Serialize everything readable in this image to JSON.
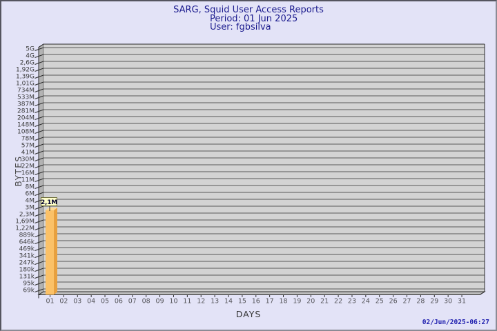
{
  "page": {
    "title": "SARG, Squid User Access Reports",
    "period_line": "Period: 01 Jun 2025",
    "user_line": "User: fgbsilva",
    "footer_timestamp": "02/Jun/2025-06:27"
  },
  "chart_data": {
    "type": "bar",
    "style": "pseudo-3d",
    "title": "SARG, Squid User Access Reports",
    "subtitle_lines": [
      "Period: 01 Jun 2025",
      "User: fgbsilva"
    ],
    "xlabel": "DAYS",
    "ylabel": "BYTES",
    "y_axis": {
      "scale": "log-like",
      "tick_labels_top_to_bottom": [
        "5G",
        "4G",
        "2,6G",
        "1,92G",
        "1,39G",
        "1,01G",
        "734M",
        "533M",
        "387M",
        "281M",
        "204M",
        "148M",
        "108M",
        "78M",
        "57M",
        "41M",
        "30M",
        "22M",
        "16M",
        "11M",
        "8M",
        "6M",
        "4M",
        "3M",
        "2,3M",
        "1,69M",
        "1,22M",
        "889k",
        "646k",
        "469k",
        "341k",
        "247k",
        "180k",
        "131k",
        "95k",
        "69k"
      ],
      "range_top": "5G",
      "range_bottom": "69k",
      "grid": "on"
    },
    "x_axis": {
      "tick_labels": [
        "01",
        "02",
        "03",
        "04",
        "05",
        "06",
        "07",
        "08",
        "09",
        "10",
        "11",
        "12",
        "13",
        "14",
        "15",
        "16",
        "17",
        "18",
        "19",
        "20",
        "21",
        "22",
        "23",
        "24",
        "25",
        "26",
        "27",
        "28",
        "29",
        "30",
        "31"
      ]
    },
    "bars": [
      {
        "day": "01",
        "value_label": "2,1M",
        "approx_bytes": 2100000
      }
    ],
    "legend": "none"
  },
  "colors": {
    "background": "#e3e3f7",
    "title_text": "#1b1b8e",
    "plot_bg": "#d3d3d3",
    "wall": "#b3b3b3",
    "floor": "#bdbdbd",
    "gridline": "#5a5a5a",
    "edge": "#2b2b2b",
    "y_label_text": "#3a3a3a",
    "x_label_text": "#55555a",
    "bar_front": "#fbc167",
    "bar_side": "#e7a03f",
    "bar_top": "#fdd993",
    "value_box_bg": "#ffffca",
    "value_box_border": "#70703c",
    "value_text": "#000030",
    "footer_text": "#1e1eae"
  }
}
